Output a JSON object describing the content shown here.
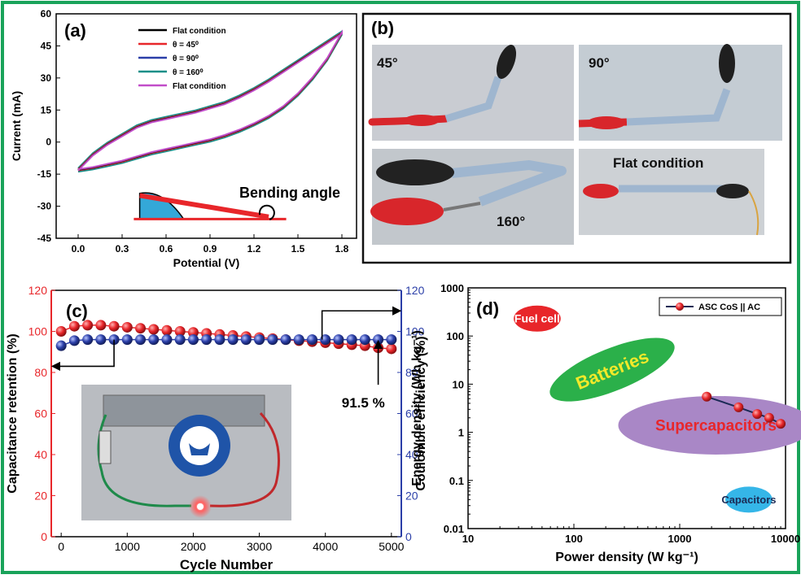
{
  "chart_data": [
    {
      "panel": "(a)",
      "type": "line",
      "xlabel": "Potential (V)",
      "ylabel": "Current (mA)",
      "xlim": [
        -0.15,
        1.9
      ],
      "ylim": [
        -45,
        60
      ],
      "xticks": [
        "0.0",
        "0.3",
        "0.6",
        "0.9",
        "1.2",
        "1.5",
        "1.8"
      ],
      "yticks": [
        "-45",
        "-30",
        "-15",
        "0",
        "15",
        "30",
        "45",
        "60"
      ],
      "legend_position": "top-center",
      "series": [
        {
          "name": "Flat condition",
          "color": "#000000"
        },
        {
          "name": "θ = 45⁰",
          "color": "#e8262a"
        },
        {
          "name": "θ = 90⁰",
          "color": "#2b3fa8"
        },
        {
          "name": "θ = 160⁰",
          "color": "#138f88"
        },
        {
          "name": "Flat condition",
          "color": "#c24dc9"
        }
      ],
      "upper_curve": {
        "x": [
          0,
          0.1,
          0.2,
          0.3,
          0.4,
          0.5,
          0.6,
          0.7,
          0.8,
          0.9,
          1.0,
          1.1,
          1.2,
          1.3,
          1.4,
          1.5,
          1.6,
          1.7,
          1.8
        ],
        "y": [
          -13,
          -6,
          -1,
          3,
          7,
          9.5,
          11,
          12.5,
          14,
          16,
          18,
          21,
          24.5,
          28.5,
          33,
          37.5,
          42,
          46.5,
          51
        ]
      },
      "lower_curve": {
        "x": [
          1.8,
          1.7,
          1.6,
          1.5,
          1.4,
          1.3,
          1.2,
          1.1,
          1.0,
          0.9,
          0.8,
          0.7,
          0.6,
          0.5,
          0.4,
          0.3,
          0.2,
          0.1,
          0
        ],
        "y": [
          51,
          39,
          30,
          22.5,
          16.5,
          12,
          8.5,
          5.5,
          3,
          1,
          -0.5,
          -2,
          -3.5,
          -5,
          -7,
          -9,
          -10.5,
          -12,
          -13
        ]
      },
      "annotation": "Bending angle"
    },
    {
      "panel": "(c)",
      "type": "scatter",
      "xlabel": "Cycle Number",
      "ylabel_left": "Capacitance retention (%)",
      "ylabel_right": "Coulombic efficiency (%)",
      "xlim": [
        -150,
        5150
      ],
      "ylim_left": [
        0,
        120
      ],
      "ylim_right": [
        0,
        120
      ],
      "xticks": [
        "0",
        "1000",
        "2000",
        "3000",
        "4000",
        "5000"
      ],
      "yticks": [
        "0",
        "20",
        "40",
        "60",
        "80",
        "100",
        "120"
      ],
      "series": [
        {
          "name": "Capacitance retention",
          "color": "#e8262a",
          "axis": "left",
          "x": [
            0,
            200,
            400,
            600,
            800,
            1000,
            1200,
            1400,
            1600,
            1800,
            2000,
            2200,
            2400,
            2600,
            2800,
            3000,
            3200,
            3400,
            3600,
            3800,
            4000,
            4200,
            4400,
            4600,
            4800,
            5000
          ],
          "y": [
            100,
            102.5,
            103,
            103,
            102.5,
            102,
            101.5,
            101,
            100.5,
            100,
            99.5,
            99,
            98.5,
            98,
            97.5,
            97,
            96.5,
            96,
            95.5,
            95,
            94.5,
            94,
            93.5,
            93,
            92,
            91.5
          ]
        },
        {
          "name": "Coulombic efficiency",
          "color": "#2b3fa8",
          "axis": "right",
          "x": [
            0,
            200,
            400,
            600,
            800,
            1000,
            1200,
            1400,
            1600,
            1800,
            2000,
            2200,
            2400,
            2600,
            2800,
            3000,
            3200,
            3400,
            3600,
            3800,
            4000,
            4200,
            4400,
            4600,
            4800,
            5000
          ],
          "y": [
            93,
            95.5,
            96,
            96,
            96,
            96,
            96,
            96,
            96,
            96,
            96,
            96,
            96,
            96,
            96,
            96,
            96,
            96,
            96,
            96,
            96,
            96,
            96,
            96,
            96,
            96
          ]
        }
      ],
      "annotation": "91.5 %"
    },
    {
      "panel": "(d)",
      "type": "scatter",
      "xlabel": "Power density (W kg⁻¹)",
      "ylabel": "Energy density (Wh kg⁻¹)",
      "xscale": "log",
      "yscale": "log",
      "xlim": [
        10,
        10000
      ],
      "ylim": [
        0.01,
        1000
      ],
      "xticks": [
        "10",
        "100",
        "1000",
        "10000"
      ],
      "yticks": [
        "0.01",
        "0.1",
        "1",
        "10",
        "100",
        "1000"
      ],
      "legend_position": "top-right",
      "series": [
        {
          "name": "ASC CoS || AC",
          "color": "#e8262a",
          "x": [
            1800,
            3600,
            5400,
            7000,
            9000
          ],
          "y": [
            5.5,
            3.3,
            2.4,
            2.0,
            1.5
          ]
        }
      ],
      "regions": [
        {
          "label": "Fuel cell",
          "color": "#e8262a",
          "label_color": "#ffffff"
        },
        {
          "label": "Batteries",
          "color": "#2bb04a",
          "label_color": "#f2e92a"
        },
        {
          "label": "Supercapacitors",
          "color": "#a987c6",
          "label_color": "#e8262a"
        },
        {
          "label": "Capacitors",
          "color": "#35b6e8",
          "label_color": "#1b2a55"
        }
      ]
    }
  ],
  "panel_b": {
    "label": "(b)",
    "photos": [
      {
        "caption": "45°"
      },
      {
        "caption": "90°"
      },
      {
        "caption": "160°"
      },
      {
        "caption": "Flat condition"
      }
    ]
  }
}
